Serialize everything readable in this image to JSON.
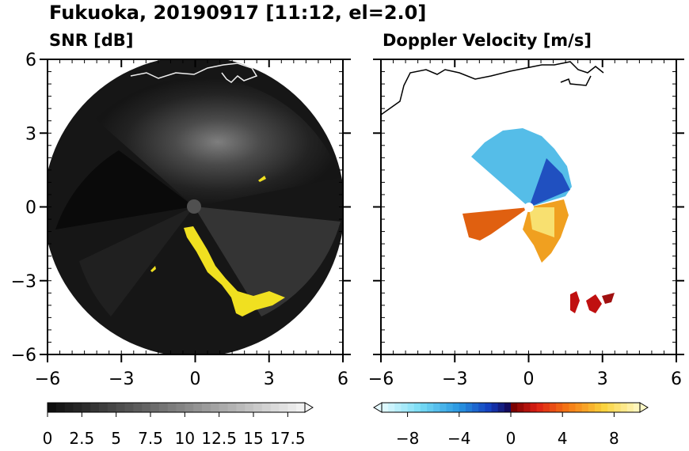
{
  "figure": {
    "title": "Fukuoka, 20190917 [11:12, el=2.0]"
  },
  "chart_data": [
    {
      "type": "heatmap",
      "title": "SNR [dB]",
      "xlim": [
        -6,
        6
      ],
      "ylim": [
        -6,
        6
      ],
      "x_ticks": [
        -6,
        -3,
        0,
        3,
        6
      ],
      "y_ticks": [
        6,
        3,
        0,
        -3,
        -6
      ],
      "x_tick_labels": [
        "−6",
        "−3",
        "0",
        "3",
        "6"
      ],
      "y_tick_labels": [
        "6",
        "3",
        "0",
        "−3",
        "−6"
      ],
      "radar_range_km": 6,
      "colorbar": {
        "min": 0,
        "max": 18.75,
        "step": 0.625,
        "extend": "max",
        "tick_values": [
          0,
          2.5,
          5,
          7.5,
          10,
          12.5,
          15,
          17.5
        ],
        "tick_labels": [
          "0",
          "2.5",
          "5",
          "7.5",
          "10",
          "12.5",
          "15",
          "17.5"
        ]
      },
      "colors": {
        "background": "#101010",
        "max_color": "#f0e020",
        "coast": "#f0f0f0"
      }
    },
    {
      "type": "heatmap",
      "title": "Doppler Velocity [m/s]",
      "xlim": [
        -6,
        6
      ],
      "ylim": [
        -6,
        6
      ],
      "x_ticks": [
        -6,
        -3,
        0,
        3,
        6
      ],
      "y_ticks": [
        6,
        3,
        0,
        -3,
        -6
      ],
      "x_tick_labels": [
        "−6",
        "−3",
        "0",
        "3",
        "6"
      ],
      "y_tick_labels": [],
      "colorbar": {
        "min": -10,
        "max": 10,
        "step": 0.5,
        "extend": "both",
        "tick_values": [
          -8,
          -4,
          0,
          4,
          8
        ],
        "tick_labels": [
          "−8",
          "−4",
          "0",
          "4",
          "8"
        ]
      },
      "colors": {
        "negative": "#2040c0",
        "positive": "#e05010",
        "coast": "#000000"
      }
    }
  ]
}
